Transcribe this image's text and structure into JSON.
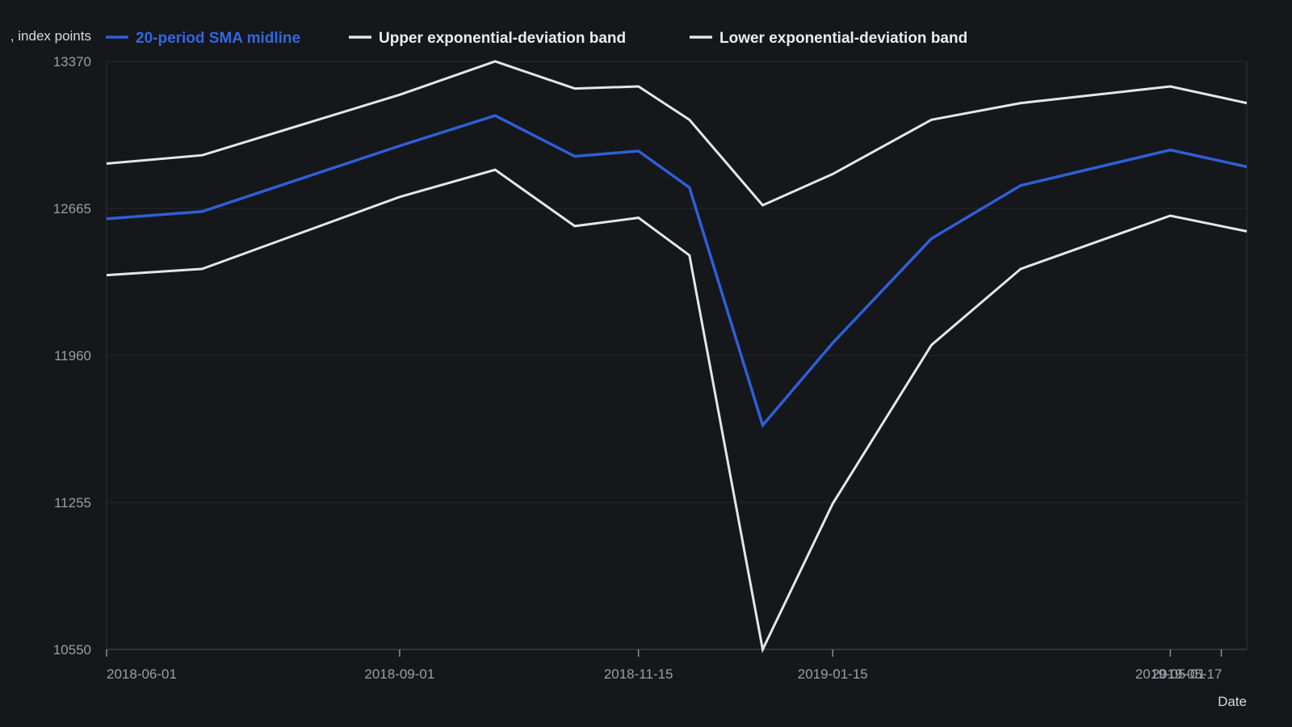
{
  "chart_data": {
    "type": "line",
    "ylabel": "Price, index points",
    "xlabel": "Date",
    "y_axis_label_visible": ", index points",
    "ylim": [
      10550,
      13370
    ],
    "y_ticks": [
      "13370",
      "12665",
      "11960",
      "11255",
      "10550"
    ],
    "x_ticks": [
      {
        "date": "2018-06-01",
        "label": "2018-06-01"
      },
      {
        "date": "2018-09-01",
        "label": "2018-09-01"
      },
      {
        "date": "2018-11-15",
        "label": "2018-11-15"
      },
      {
        "date": "2019-01-15",
        "label": "2019-01-15"
      },
      {
        "date": "2019-05-01",
        "label": "2019-05-01"
      },
      {
        "date": "2019-05-17",
        "label": "2019-05-17"
      }
    ],
    "x_range": [
      "2018-06-01",
      "2019-05-25"
    ],
    "grid": true,
    "legend_position": "top",
    "x": [
      "2018-06-01",
      "2018-07-01",
      "2018-09-01",
      "2018-10-01",
      "2018-10-26",
      "2018-11-15",
      "2018-12-01",
      "2018-12-24",
      "2019-01-15",
      "2019-02-15",
      "2019-03-15",
      "2019-05-01",
      "2019-05-25"
    ],
    "series": [
      {
        "name": "20-period SMA midline",
        "color": "#2f5fd7",
        "values": [
          12615,
          12650,
          12965,
          13110,
          12915,
          12940,
          12765,
          11625,
          12020,
          12520,
          12775,
          12945,
          12865
        ]
      },
      {
        "name": "Upper exponential-deviation band",
        "color": "#e6e6e6",
        "values": [
          12880,
          12920,
          13210,
          13370,
          13240,
          13250,
          13090,
          12680,
          12830,
          13090,
          13170,
          13250,
          13170
        ]
      },
      {
        "name": "Lower exponential-deviation band",
        "color": "#e6e6e6",
        "values": [
          12345,
          12375,
          12720,
          12850,
          12580,
          12620,
          12440,
          10550,
          11250,
          12010,
          12375,
          12630,
          12555
        ]
      }
    ]
  }
}
